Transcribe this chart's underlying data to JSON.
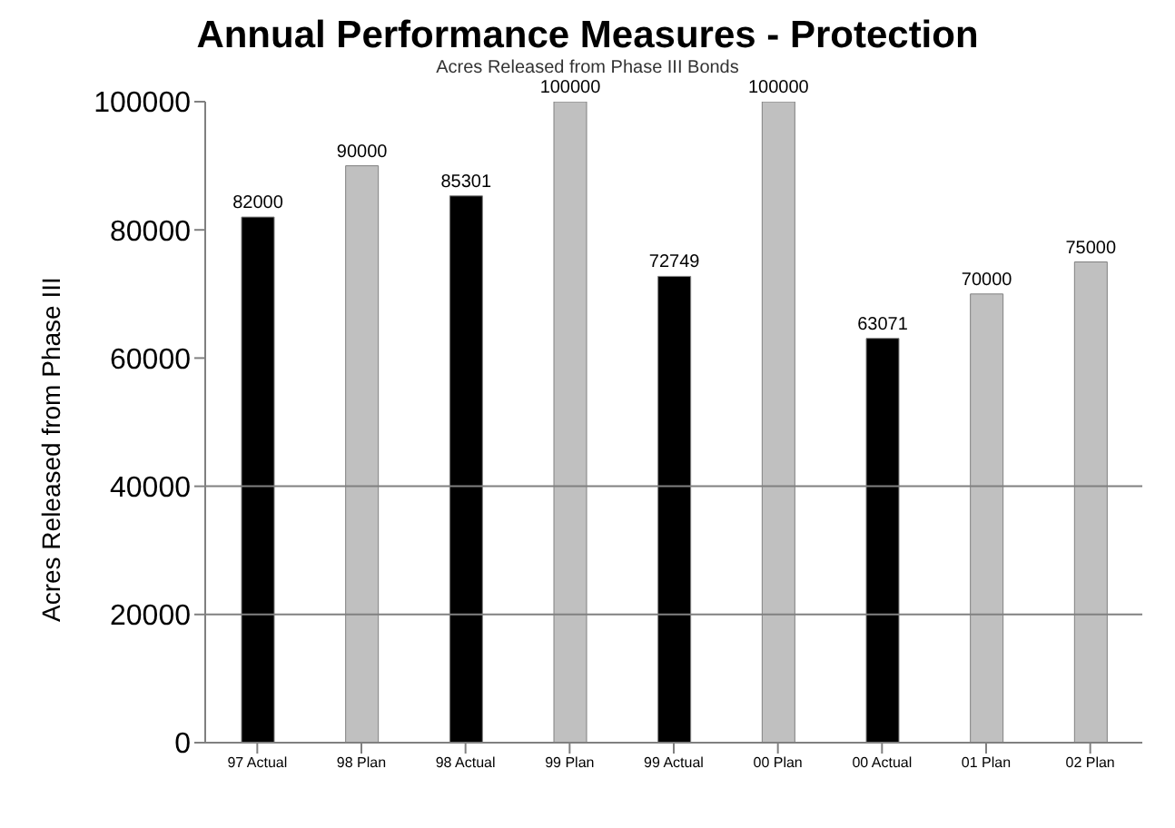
{
  "chart_data": {
    "type": "bar",
    "title": "Annual Performance Measures - Protection",
    "subtitle": "Acres Released from Phase III Bonds",
    "ylabel": "Acres Released from Phase III",
    "categories": [
      "97 Actual",
      "98 Plan",
      "98 Actual",
      "99 Plan",
      "99 Actual",
      "00 Plan",
      "00 Actual",
      "01 Plan",
      "02 Plan"
    ],
    "values": [
      82000,
      90000,
      85301,
      100000,
      72749,
      100000,
      63071,
      70000,
      75000
    ],
    "colors": [
      "#000000",
      "#c0c0c0",
      "#000000",
      "#c0c0c0",
      "#000000",
      "#c0c0c0",
      "#000000",
      "#c0c0c0",
      "#c0c0c0"
    ],
    "ylim": [
      0,
      100000
    ],
    "yticks": [
      0,
      20000,
      40000,
      60000,
      80000,
      100000
    ],
    "grid": false,
    "legend": false,
    "data_labels": true,
    "ref_lines": [
      {
        "axis": "y",
        "value": 20000,
        "label": null,
        "color": "#808080"
      },
      {
        "axis": "y",
        "value": 40000,
        "label": null,
        "color": "#808080"
      }
    ]
  }
}
